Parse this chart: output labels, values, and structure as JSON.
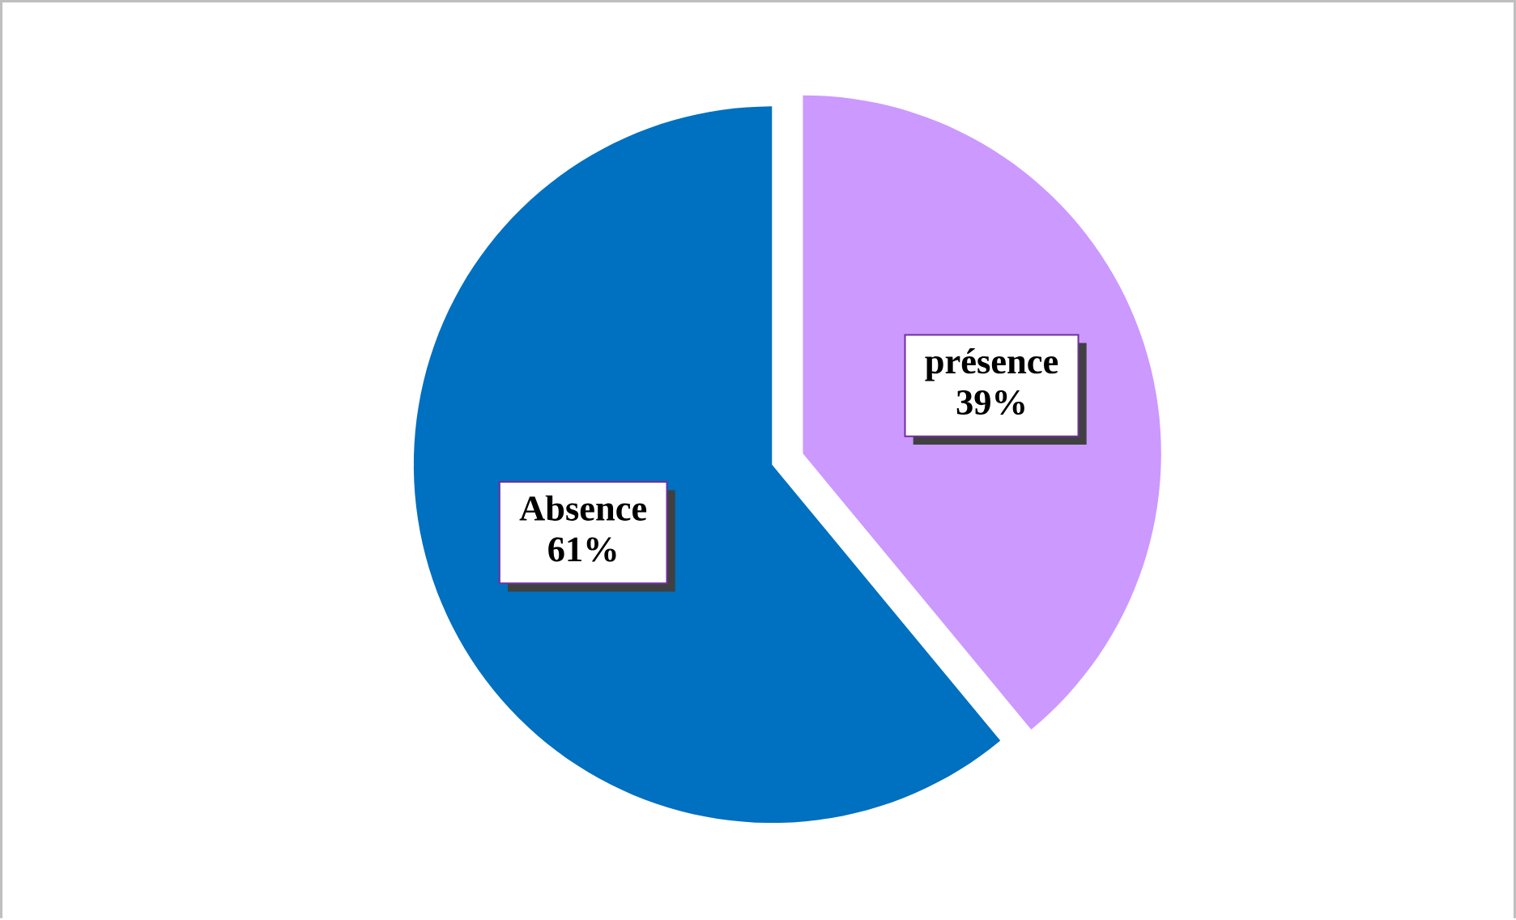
{
  "chart_data": {
    "type": "pie",
    "categories": [
      "présence",
      "Absence"
    ],
    "values": [
      39,
      61
    ],
    "value_labels": [
      "39%",
      "61%"
    ],
    "colors": [
      "#cc99ff",
      "#0070c0"
    ]
  }
}
